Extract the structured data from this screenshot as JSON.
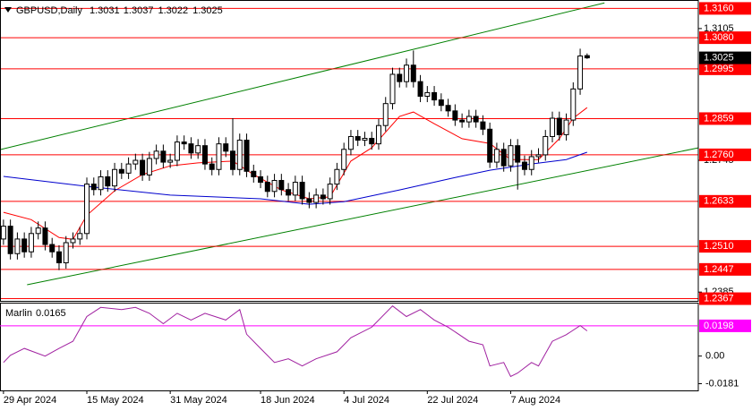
{
  "chart_data": {
    "type": "candlestick",
    "title": "GBPUSD,Daily",
    "xlim": [
      -0.5,
      100
    ],
    "xticks": [
      {
        "value": 0,
        "label": "29 Apr 2024"
      },
      {
        "value": 12,
        "label": "15 May 2024"
      },
      {
        "value": 24,
        "label": "31 May 2024"
      },
      {
        "value": 37,
        "label": "18 Jun 2024"
      },
      {
        "value": 49,
        "label": "4 Jul 2024"
      },
      {
        "value": 61,
        "label": "22 Jul 2024"
      },
      {
        "value": 73,
        "label": "7 Aug 2024"
      }
    ],
    "ylim": [
      1.2361,
      1.3183
    ],
    "yticks": [
      1.3105,
      1.2745,
      1.2385
    ],
    "level_color": "#ff0000",
    "levels": [
      {
        "value": 1.316,
        "label": "1.3160"
      },
      {
        "value": 1.308,
        "label": "1.3080"
      },
      {
        "value": 1.2995,
        "label": "1.2995"
      },
      {
        "value": 1.2859,
        "label": "1.2859"
      },
      {
        "value": 1.276,
        "label": "1.2760"
      },
      {
        "value": 1.2633,
        "label": "1.2633"
      },
      {
        "value": 1.251,
        "label": "1.2510"
      },
      {
        "value": 1.2447,
        "label": "1.2447"
      },
      {
        "value": 1.2367,
        "label": "1.2367"
      }
    ],
    "up_color": "#ffffff",
    "down_color": "#000000",
    "open": [
      1.253,
      1.2565,
      1.249,
      1.253,
      1.2495,
      1.2545,
      1.256,
      1.2515,
      1.2495,
      1.2465,
      1.252,
      1.253,
      1.2545,
      1.268,
      1.2665,
      1.27,
      1.2675,
      1.272,
      1.271,
      1.2735,
      1.2745,
      1.2705,
      1.275,
      1.277,
      1.274,
      1.2745,
      1.2795,
      1.279,
      1.2765,
      1.2785,
      1.2735,
      1.272,
      1.279,
      1.277,
      1.272,
      1.28,
      1.2715,
      1.27,
      1.2685,
      1.266,
      1.269,
      1.2665,
      1.265,
      1.2685,
      1.264,
      1.263,
      1.265,
      1.264,
      1.268,
      1.272,
      1.2775,
      1.281,
      1.28,
      1.2805,
      1.279,
      1.284,
      1.29,
      1.298,
      1.296,
      1.3005,
      1.296,
      1.292,
      1.293,
      1.291,
      1.2895,
      1.288,
      1.2855,
      1.285,
      1.2865,
      1.285,
      1.283,
      1.274,
      1.2775,
      1.273,
      1.2785,
      1.274,
      1.272,
      1.2755,
      1.276,
      1.281,
      1.286,
      1.2815,
      1.2855,
      1.294,
      1.3031
    ],
    "high": [
      1.2583,
      1.2583,
      1.2548,
      1.2548,
      1.2563,
      1.2578,
      1.2578,
      1.2533,
      1.2513,
      1.2538,
      1.2548,
      1.2563,
      1.2698,
      1.2698,
      1.2718,
      1.2718,
      1.2738,
      1.2738,
      1.2753,
      1.2763,
      1.2763,
      1.2768,
      1.2788,
      1.2788,
      1.2763,
      1.2813,
      1.2813,
      1.2808,
      1.2803,
      1.2803,
      1.2753,
      1.2808,
      1.2808,
      1.286,
      1.2818,
      1.2818,
      1.2733,
      1.2718,
      1.2703,
      1.2708,
      1.2708,
      1.2683,
      1.2703,
      1.2703,
      1.2658,
      1.2668,
      1.2668,
      1.2698,
      1.2738,
      1.2793,
      1.2828,
      1.2828,
      1.2823,
      1.2823,
      1.2858,
      1.2918,
      1.2998,
      1.2998,
      1.3023,
      1.3045,
      1.2978,
      1.2948,
      1.2948,
      1.2928,
      1.2913,
      1.2898,
      1.2873,
      1.2883,
      1.2883,
      1.2868,
      1.2848,
      1.2793,
      1.2793,
      1.2803,
      1.2803,
      1.2758,
      1.2773,
      1.2778,
      1.2828,
      1.2878,
      1.2878,
      1.2873,
      1.2958,
      1.305,
      1.3037
    ],
    "low": [
      1.2514,
      1.2474,
      1.2474,
      1.2479,
      1.2479,
      1.2529,
      1.2499,
      1.2479,
      1.2445,
      1.2449,
      1.2504,
      1.2514,
      1.2529,
      1.2649,
      1.2649,
      1.2659,
      1.2659,
      1.2694,
      1.2694,
      1.2719,
      1.2689,
      1.2689,
      1.2734,
      1.2724,
      1.2724,
      1.2729,
      1.2774,
      1.2749,
      1.2749,
      1.2719,
      1.2704,
      1.2704,
      1.2754,
      1.2704,
      1.2704,
      1.2699,
      1.2684,
      1.2669,
      1.2644,
      1.2644,
      1.2649,
      1.2634,
      1.2634,
      1.2624,
      1.2614,
      1.2614,
      1.2624,
      1.2624,
      1.2664,
      1.2704,
      1.2759,
      1.2784,
      1.2784,
      1.2774,
      1.2774,
      1.2824,
      1.2884,
      1.2944,
      1.2944,
      1.2944,
      1.2904,
      1.2904,
      1.2894,
      1.2879,
      1.2864,
      1.2839,
      1.2834,
      1.2834,
      1.2834,
      1.2814,
      1.2724,
      1.2724,
      1.2714,
      1.2714,
      1.2665,
      1.2704,
      1.2704,
      1.2739,
      1.2744,
      1.2794,
      1.2799,
      1.2799,
      1.2839,
      1.2924,
      1.3022
    ],
    "close": [
      1.2565,
      1.249,
      1.253,
      1.2495,
      1.2545,
      1.256,
      1.2515,
      1.2495,
      1.2465,
      1.252,
      1.253,
      1.2545,
      1.268,
      1.2665,
      1.27,
      1.2675,
      1.272,
      1.271,
      1.2735,
      1.2745,
      1.2705,
      1.275,
      1.277,
      1.274,
      1.2745,
      1.2795,
      1.279,
      1.2765,
      1.2785,
      1.2735,
      1.272,
      1.279,
      1.277,
      1.272,
      1.28,
      1.2715,
      1.27,
      1.2685,
      1.266,
      1.269,
      1.2665,
      1.265,
      1.2685,
      1.264,
      1.263,
      1.265,
      1.264,
      1.268,
      1.272,
      1.2775,
      1.281,
      1.28,
      1.2805,
      1.279,
      1.284,
      1.29,
      1.298,
      1.296,
      1.3005,
      1.296,
      1.292,
      1.293,
      1.291,
      1.2895,
      1.288,
      1.2855,
      1.285,
      1.2865,
      1.285,
      1.283,
      1.274,
      1.2775,
      1.273,
      1.2785,
      1.274,
      1.272,
      1.2755,
      1.276,
      1.281,
      1.286,
      1.2815,
      1.2855,
      1.294,
      1.303,
      1.3025
    ],
    "series": [
      {
        "color": "#ff0000",
        "x": [
          0,
          4,
          8,
          10,
          12,
          16,
          20,
          24,
          28,
          33,
          36,
          40,
          44,
          47,
          50,
          53,
          57,
          59,
          62,
          66,
          70,
          73,
          77,
          80,
          82,
          84
        ],
        "values": [
          1.2603,
          1.2583,
          1.2534,
          1.2529,
          1.2595,
          1.2662,
          1.2706,
          1.273,
          1.2738,
          1.2743,
          1.2706,
          1.2664,
          1.264,
          1.2645,
          1.2743,
          1.2779,
          1.2865,
          1.2877,
          1.2845,
          1.2804,
          1.2791,
          1.2747,
          1.2747,
          1.2804,
          1.286,
          1.2889
        ]
      },
      {
        "color": "#0000cd",
        "x": [
          0,
          12,
          24,
          37,
          44,
          49,
          57,
          65,
          70,
          76,
          81,
          84
        ],
        "values": [
          1.2701,
          1.2674,
          1.265,
          1.264,
          1.2625,
          1.2632,
          1.2664,
          1.2698,
          1.2718,
          1.2735,
          1.2747,
          1.2767
        ]
      }
    ],
    "trendline_color": "#008000",
    "trendlines": [
      {
        "x": [
          -0.5,
          86.5
        ],
        "values": [
          1.2774,
          1.3175
        ]
      },
      {
        "x": [
          3.4,
          100
        ],
        "values": [
          1.2405,
          1.2779
        ]
      }
    ],
    "oscillator": {
      "name": "Marlin",
      "color": "#a020a0",
      "ylim": [
        -0.0225,
        0.035
      ],
      "yticks": [
        {
          "value": 0,
          "label": "0.00"
        },
        -0.0181
      ],
      "level": 0.0198,
      "level_color": "#ff00ff",
      "x": [
        0,
        1,
        3,
        6,
        8,
        10,
        12,
        14,
        17,
        19,
        21,
        23,
        25,
        27,
        29,
        32,
        34,
        35,
        37,
        39,
        41,
        43,
        45,
        48,
        50,
        53,
        56,
        58,
        60,
        62,
        64,
        67,
        69,
        70,
        72,
        73,
        74,
        76,
        77,
        79,
        81,
        83,
        84
      ],
      "values": [
        -0.0042,
        0.0005,
        0.005,
        0,
        0.005,
        0.0097,
        0.0259,
        0.0319,
        0.0305,
        0.0319,
        0.028,
        0.0212,
        0.028,
        0.0236,
        0.028,
        0.0236,
        0.0305,
        0.0143,
        0.005,
        -0.0042,
        -0.0018,
        -0.0065,
        -0.0018,
        0.0028,
        0.012,
        0.0189,
        0.0328,
        0.0259,
        0.0305,
        0.0236,
        0.0189,
        0.0097,
        0.0074,
        -0.0065,
        -0.0042,
        -0.0134,
        -0.0111,
        -0.0042,
        -0.0065,
        0.0097,
        0.014,
        0.02,
        0.0165
      ]
    }
  }
}
